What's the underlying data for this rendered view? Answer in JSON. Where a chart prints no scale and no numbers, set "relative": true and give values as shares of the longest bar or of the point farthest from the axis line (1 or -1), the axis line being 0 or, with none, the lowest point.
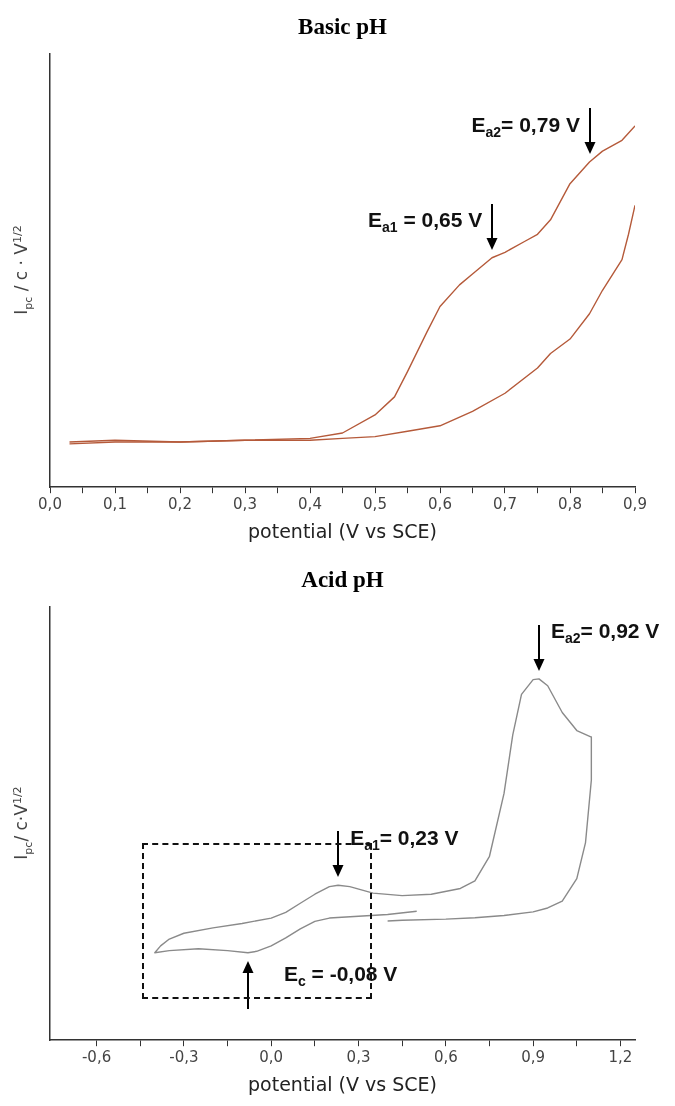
{
  "chart_data": [
    {
      "type": "line",
      "title": "Basic pH",
      "xlabel": "potential (V vs SCE)",
      "ylabel": "I$_{pc}$ / c · V$^{1/2}$",
      "relative": true,
      "marker": "none",
      "xlim": [
        0,
        0.9
      ],
      "xticks": [
        {
          "value": 0,
          "label": "0,0"
        },
        {
          "value": 0.05,
          "label": null
        },
        {
          "value": 0.1,
          "label": "0,1"
        },
        {
          "value": 0.15,
          "label": null
        },
        {
          "value": 0.2,
          "label": "0,2"
        },
        {
          "value": 0.25,
          "label": null
        },
        {
          "value": 0.3,
          "label": "0,3"
        },
        {
          "value": 0.35,
          "label": null
        },
        {
          "value": 0.4,
          "label": "0,4"
        },
        {
          "value": 0.45,
          "label": null
        },
        {
          "value": 0.5,
          "label": "0,5"
        },
        {
          "value": 0.55,
          "label": null
        },
        {
          "value": 0.6,
          "label": "0,6"
        },
        {
          "value": 0.65,
          "label": null
        },
        {
          "value": 0.7,
          "label": "0,7"
        },
        {
          "value": 0.75,
          "label": null
        },
        {
          "value": 0.8,
          "label": "0,8"
        },
        {
          "value": 0.85,
          "label": null
        },
        {
          "value": 0.9,
          "label": "0,9"
        }
      ],
      "series": [
        {
          "color": "#b55a3a",
          "x": [
            0.03,
            0.1,
            0.2,
            0.3,
            0.4,
            0.45,
            0.5,
            0.53,
            0.55,
            0.58,
            0.6,
            0.63,
            0.65,
            0.68,
            0.7,
            0.73,
            0.75,
            0.77,
            0.8,
            0.83,
            0.85,
            0.88,
            0.9
          ],
          "values": [
            0.125,
            0.13,
            0.125,
            0.13,
            0.135,
            0.15,
            0.2,
            0.25,
            0.32,
            0.43,
            0.5,
            0.56,
            0.59,
            0.635,
            0.65,
            0.68,
            0.7,
            0.74,
            0.84,
            0.9,
            0.93,
            0.96,
            1.0
          ]
        },
        {
          "color": "#b55a3a",
          "x": [
            0.9,
            0.89,
            0.88,
            0.85,
            0.83,
            0.8,
            0.77,
            0.75,
            0.7,
            0.65,
            0.6,
            0.55,
            0.5,
            0.45,
            0.4,
            0.3,
            0.2,
            0.1,
            0.03
          ],
          "values": [
            0.78,
            0.7,
            0.63,
            0.545,
            0.48,
            0.41,
            0.37,
            0.33,
            0.26,
            0.21,
            0.17,
            0.155,
            0.14,
            0.135,
            0.13,
            0.13,
            0.125,
            0.125,
            0.12
          ]
        }
      ],
      "annotations": [
        {
          "text": "E$_{a1}$ = 0,65 V",
          "x": 0.68,
          "y": 0.635
        },
        {
          "text": "E$_{a2}$= 0,79 V",
          "x": 0.83,
          "y": 0.9
        }
      ]
    },
    {
      "type": "line",
      "title": "Acid pH",
      "xlabel": "potential (V vs SCE)",
      "ylabel": "I$_{pc}$/ c·V$^{1/2}$",
      "relative": true,
      "marker": "none",
      "xlim": [
        -0.76,
        1.25
      ],
      "xticks": [
        {
          "value": -0.6,
          "label": "-0,6"
        },
        {
          "value": -0.45,
          "label": null
        },
        {
          "value": -0.3,
          "label": "-0,3"
        },
        {
          "value": -0.15,
          "label": null
        },
        {
          "value": 0,
          "label": "0,0"
        },
        {
          "value": 0.15,
          "label": null
        },
        {
          "value": 0.3,
          "label": "0,3"
        },
        {
          "value": 0.45,
          "label": null
        },
        {
          "value": 0.6,
          "label": "0,6"
        },
        {
          "value": 0.75,
          "label": null
        },
        {
          "value": 0.9,
          "label": "0,9"
        },
        {
          "value": 1.05,
          "label": null
        },
        {
          "value": 1.2,
          "label": "1,2"
        }
      ],
      "series": [
        {
          "color": "#8a8a8a",
          "x": [
            0.5,
            0.4,
            0.3,
            0.2,
            0.15,
            0.1,
            0.05,
            0.0,
            -0.05,
            -0.08,
            -0.15,
            -0.25,
            -0.35,
            -0.4,
            -0.38,
            -0.35,
            -0.3,
            -0.2,
            -0.1,
            0.0,
            0.05,
            0.1,
            0.15,
            0.2,
            0.23,
            0.27,
            0.35,
            0.45,
            0.55,
            0.65,
            0.7,
            0.75,
            0.8,
            0.83,
            0.86,
            0.9,
            0.92,
            0.95,
            1.0,
            1.05,
            1.1,
            1.1,
            1.08,
            1.05,
            1.0,
            0.95,
            0.9,
            0.8,
            0.7,
            0.6,
            0.45,
            0.4
          ],
          "values": [
            0.357,
            0.348,
            0.343,
            0.338,
            0.329,
            0.308,
            0.283,
            0.261,
            0.246,
            0.242,
            0.248,
            0.253,
            0.248,
            0.242,
            0.261,
            0.28,
            0.296,
            0.311,
            0.323,
            0.338,
            0.354,
            0.379,
            0.404,
            0.425,
            0.429,
            0.425,
            0.407,
            0.4,
            0.404,
            0.42,
            0.441,
            0.509,
            0.683,
            0.845,
            0.957,
            0.998,
            1.0,
            0.981,
            0.907,
            0.857,
            0.839,
            0.72,
            0.547,
            0.447,
            0.385,
            0.366,
            0.355,
            0.345,
            0.339,
            0.335,
            0.332,
            0.33
          ]
        }
      ],
      "annotations": [
        {
          "text": "E$_{a2}$= 0,92 V",
          "x": 0.92,
          "y": 1.0
        },
        {
          "text": "E$_{a1}$= 0,23 V",
          "x": 0.23,
          "y": 0.429
        },
        {
          "text": "E$_{c}$ = -0,08 V",
          "x": -0.08,
          "y": 0.242
        }
      ]
    }
  ]
}
